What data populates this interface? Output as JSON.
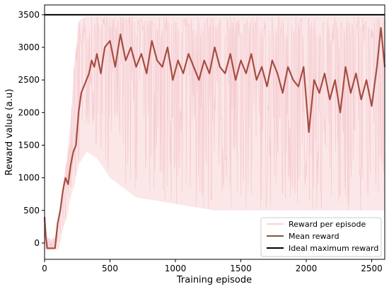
{
  "chart_data": {
    "type": "line",
    "title": "",
    "xlabel": "Training episode",
    "ylabel": "Reward value (a.u)",
    "xlim": [
      0,
      2600
    ],
    "ylim": [
      -250,
      3650
    ],
    "xticks": [
      0,
      500,
      1000,
      1500,
      2000,
      2500
    ],
    "yticks": [
      0,
      500,
      1000,
      1500,
      2000,
      2500,
      3000,
      3500
    ],
    "grid": false,
    "legend_position": "bottom-right",
    "colors": {
      "reward": "#f4c6cc",
      "band": "#f7d3d6",
      "mean_a": "#c8474b",
      "mean_b": "#7a5a3c",
      "ideal": "#000000"
    },
    "series": [
      {
        "name": "Reward per episode",
        "kind": "noisy",
        "envelope": {
          "x": [
            0,
            20,
            50,
            80,
            110,
            140,
            170,
            200,
            230,
            260,
            290,
            320,
            400,
            500,
            700,
            1000,
            1300,
            1600,
            1900,
            2200,
            2400,
            2600
          ],
          "low": [
            -100,
            -100,
            -100,
            -100,
            -100,
            200,
            400,
            700,
            900,
            1200,
            1300,
            1400,
            1300,
            1000,
            700,
            600,
            500,
            500,
            500,
            500,
            500,
            500
          ],
          "high": [
            300,
            100,
            50,
            100,
            400,
            900,
            1300,
            1900,
            2800,
            3400,
            3450,
            3480,
            3480,
            3480,
            3480,
            3480,
            3480,
            3480,
            3480,
            3480,
            3480,
            3480
          ]
        }
      },
      {
        "name": "Mean reward",
        "kind": "mean",
        "points": {
          "x": [
            0,
            10,
            20,
            40,
            60,
            80,
            100,
            120,
            140,
            160,
            180,
            200,
            220,
            240,
            260,
            280,
            300,
            320,
            340,
            360,
            380,
            400,
            430,
            460,
            500,
            540,
            580,
            620,
            660,
            700,
            740,
            780,
            820,
            860,
            900,
            940,
            980,
            1020,
            1060,
            1100,
            1140,
            1180,
            1220,
            1260,
            1300,
            1340,
            1380,
            1420,
            1460,
            1500,
            1540,
            1580,
            1620,
            1660,
            1700,
            1740,
            1780,
            1820,
            1860,
            1900,
            1940,
            1980,
            2020,
            2060,
            2100,
            2140,
            2180,
            2220,
            2260,
            2300,
            2340,
            2380,
            2420,
            2460,
            2500,
            2540,
            2570,
            2600
          ],
          "y": [
            400,
            100,
            -80,
            -80,
            -80,
            -80,
            300,
            500,
            800,
            1000,
            900,
            1200,
            1400,
            1500,
            2000,
            2300,
            2400,
            2500,
            2600,
            2800,
            2700,
            2900,
            2600,
            3000,
            3100,
            2700,
            3200,
            2800,
            3000,
            2700,
            2900,
            2600,
            3100,
            2800,
            2700,
            3000,
            2500,
            2800,
            2600,
            2900,
            2700,
            2500,
            2800,
            2600,
            3000,
            2700,
            2600,
            2900,
            2500,
            2800,
            2600,
            2900,
            2500,
            2700,
            2400,
            2800,
            2600,
            2300,
            2700,
            2500,
            2400,
            2700,
            1700,
            2500,
            2300,
            2600,
            2200,
            2500,
            2000,
            2700,
            2300,
            2600,
            2200,
            2500,
            2100,
            2700,
            3300,
            2700
          ]
        }
      },
      {
        "name": "Ideal maximum reward",
        "kind": "hline",
        "y": 3500
      }
    ]
  }
}
